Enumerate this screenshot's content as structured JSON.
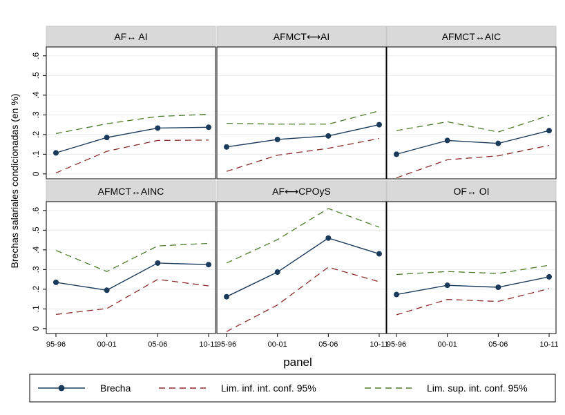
{
  "colors": {
    "brecha": "#1a3a5c",
    "inf": "#8b2a2a",
    "sup": "#4d7a2a",
    "header_bg": "#d9d9d9",
    "grid": "#e8ecef"
  },
  "chart_data": {
    "type": "line",
    "ylabel": "Brechas salariales condicionadas (en %)",
    "xlabel": "panel",
    "x": [
      "95-96",
      "00-01",
      "05-06",
      "10-11"
    ],
    "yticks": [
      "0",
      ".1",
      ".2",
      ".3",
      ".4",
      ".5",
      ".6"
    ],
    "ylim": [
      0,
      0.6
    ],
    "grid": true,
    "legend": {
      "position": "bottom",
      "items": [
        {
          "key": "brecha",
          "label": "Brecha"
        },
        {
          "key": "inf",
          "label": "Lim. inf. int. conf. 95%"
        },
        {
          "key": "sup",
          "label": "Lim. sup. int. conf. 95%"
        }
      ]
    },
    "panels": [
      {
        "title": "AF↔ AI",
        "series": {
          "brecha": [
            0.107,
            0.185,
            0.233,
            0.237
          ],
          "inf": [
            0.005,
            0.115,
            0.17,
            0.172
          ],
          "sup": [
            0.205,
            0.255,
            0.292,
            0.303
          ]
        }
      },
      {
        "title": "AFMCT⟷AI",
        "series": {
          "brecha": [
            0.137,
            0.175,
            0.193,
            0.25
          ],
          "inf": [
            0.013,
            0.095,
            0.13,
            0.18
          ],
          "sup": [
            0.257,
            0.253,
            0.253,
            0.32
          ]
        }
      },
      {
        "title": "AFMCT↔AIC",
        "series": {
          "brecha": [
            0.1,
            0.17,
            0.155,
            0.22
          ],
          "inf": [
            -0.02,
            0.072,
            0.092,
            0.145
          ],
          "sup": [
            0.22,
            0.265,
            0.213,
            0.297
          ]
        }
      },
      {
        "title": "AFMCT↔AINC",
        "series": {
          "brecha": [
            0.235,
            0.195,
            0.333,
            0.325
          ],
          "inf": [
            0.072,
            0.102,
            0.25,
            0.217
          ],
          "sup": [
            0.397,
            0.29,
            0.42,
            0.433
          ]
        }
      },
      {
        "title": "AF⟷CPOyS",
        "series": {
          "brecha": [
            0.162,
            0.287,
            0.46,
            0.38
          ],
          "inf": [
            -0.015,
            0.12,
            0.312,
            0.238
          ],
          "sup": [
            0.333,
            0.452,
            0.61,
            0.515
          ]
        }
      },
      {
        "title": "OF↔ OI",
        "series": {
          "brecha": [
            0.173,
            0.22,
            0.21,
            0.263
          ],
          "inf": [
            0.07,
            0.148,
            0.138,
            0.203
          ],
          "sup": [
            0.275,
            0.29,
            0.28,
            0.322
          ]
        }
      }
    ]
  }
}
